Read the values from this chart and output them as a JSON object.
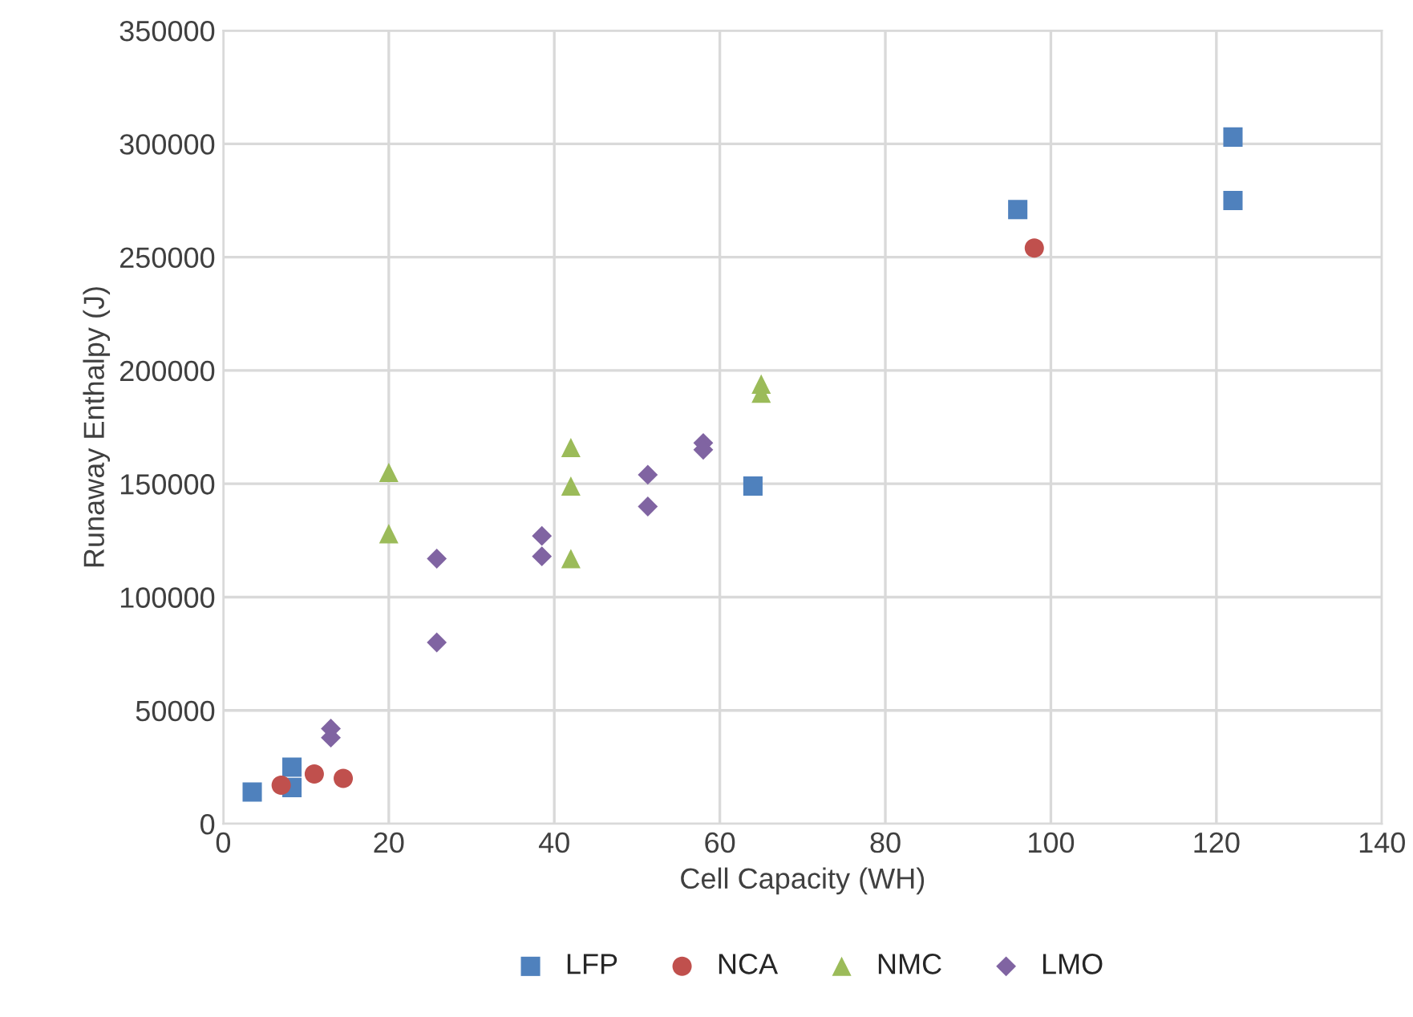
{
  "chart_data": {
    "type": "scatter",
    "xlabel": "Cell Capacity (WH)",
    "ylabel": "Runaway Enthalpy (J)",
    "xlim": [
      0,
      140
    ],
    "xticks": [
      0,
      20,
      40,
      60,
      80,
      100,
      120,
      140
    ],
    "ylim": [
      0,
      350000
    ],
    "yticks": [
      0,
      50000,
      100000,
      150000,
      200000,
      250000,
      300000,
      350000
    ],
    "grid": true,
    "legend": "bottom",
    "series": [
      {
        "name": "LFP",
        "color": "#4f81bd",
        "marker": "square",
        "x": [
          3.5,
          8.3,
          8.3,
          64,
          96,
          122,
          122
        ],
        "values": [
          14000,
          25000,
          16000,
          149000,
          271000,
          303000,
          275000
        ]
      },
      {
        "name": "NCA",
        "color": "#c0504d",
        "marker": "circle",
        "x": [
          7,
          11,
          14.5,
          98
        ],
        "values": [
          17000,
          22000,
          20000,
          254000
        ]
      },
      {
        "name": "NMC",
        "color": "#9bbb59",
        "marker": "triangle",
        "x": [
          20,
          20,
          42,
          42,
          42,
          65,
          65
        ],
        "values": [
          155000,
          128000,
          166000,
          149000,
          117000,
          194000,
          190000
        ]
      },
      {
        "name": "LMO",
        "color": "#8064a2",
        "marker": "diamond",
        "x": [
          13,
          13,
          25.8,
          25.8,
          38.5,
          38.5,
          51.3,
          51.3,
          58,
          58
        ],
        "values": [
          42000,
          38000,
          117000,
          80000,
          127000,
          118000,
          154000,
          140000,
          168000,
          165000
        ]
      }
    ]
  }
}
